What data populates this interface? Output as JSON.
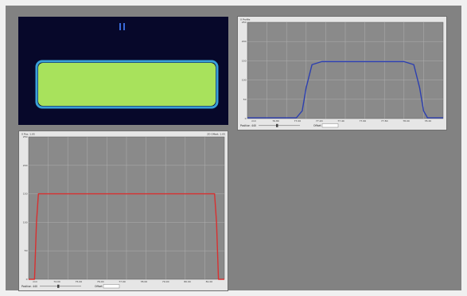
{
  "window": {
    "background": "#828282"
  },
  "camera_view": {
    "background": "#07082a",
    "beam_fill": "#a8e25c",
    "beam_edge": "#3aa0d8",
    "marker_color": "#3a6ad8"
  },
  "profiles": [
    {
      "id": "top",
      "header_left": "X Profile",
      "header_right": "",
      "line_color": "#2c3fb0",
      "y_ticks": [
        "250",
        "200",
        "150",
        "100",
        "50",
        "0"
      ],
      "x_ticks": [
        "mm",
        "76.80",
        "77.00",
        "77.20",
        "77.40",
        "77.60",
        "77.80",
        "78.00",
        "78.20"
      ],
      "controls": {
        "position_label": "Position",
        "position_value": "440",
        "offset_label": "Offset"
      },
      "chart_data": {
        "type": "line",
        "ylim": [
          0,
          250
        ],
        "x": [
          0,
          0.25,
          0.28,
          0.3,
          0.33,
          0.38,
          0.5,
          0.8,
          0.85,
          0.88,
          0.9,
          0.92,
          1.0
        ],
        "values": [
          2,
          2,
          20,
          80,
          140,
          148,
          148,
          148,
          140,
          80,
          20,
          2,
          2
        ]
      }
    },
    {
      "id": "bottom",
      "header_left": "X Pos: 1.05",
      "header_right": "2D Offset: 1.05",
      "line_color": "#d83030",
      "y_ticks": [
        "250",
        "200",
        "150",
        "100",
        "50",
        "0"
      ],
      "x_ticks": [
        "mm",
        "74.00",
        "75.00",
        "76.00",
        "77.00",
        "78.00",
        "79.00",
        "80.00",
        "81.00"
      ],
      "controls": {
        "position_label": "Position",
        "position_value": "440",
        "offset_label": "Offset"
      },
      "chart_data": {
        "type": "line",
        "ylim": [
          0,
          250
        ],
        "x": [
          0,
          0.03,
          0.04,
          0.05,
          0.95,
          0.96,
          0.97,
          1.0
        ],
        "values": [
          0,
          0,
          100,
          150,
          150,
          100,
          0,
          0
        ]
      }
    }
  ]
}
